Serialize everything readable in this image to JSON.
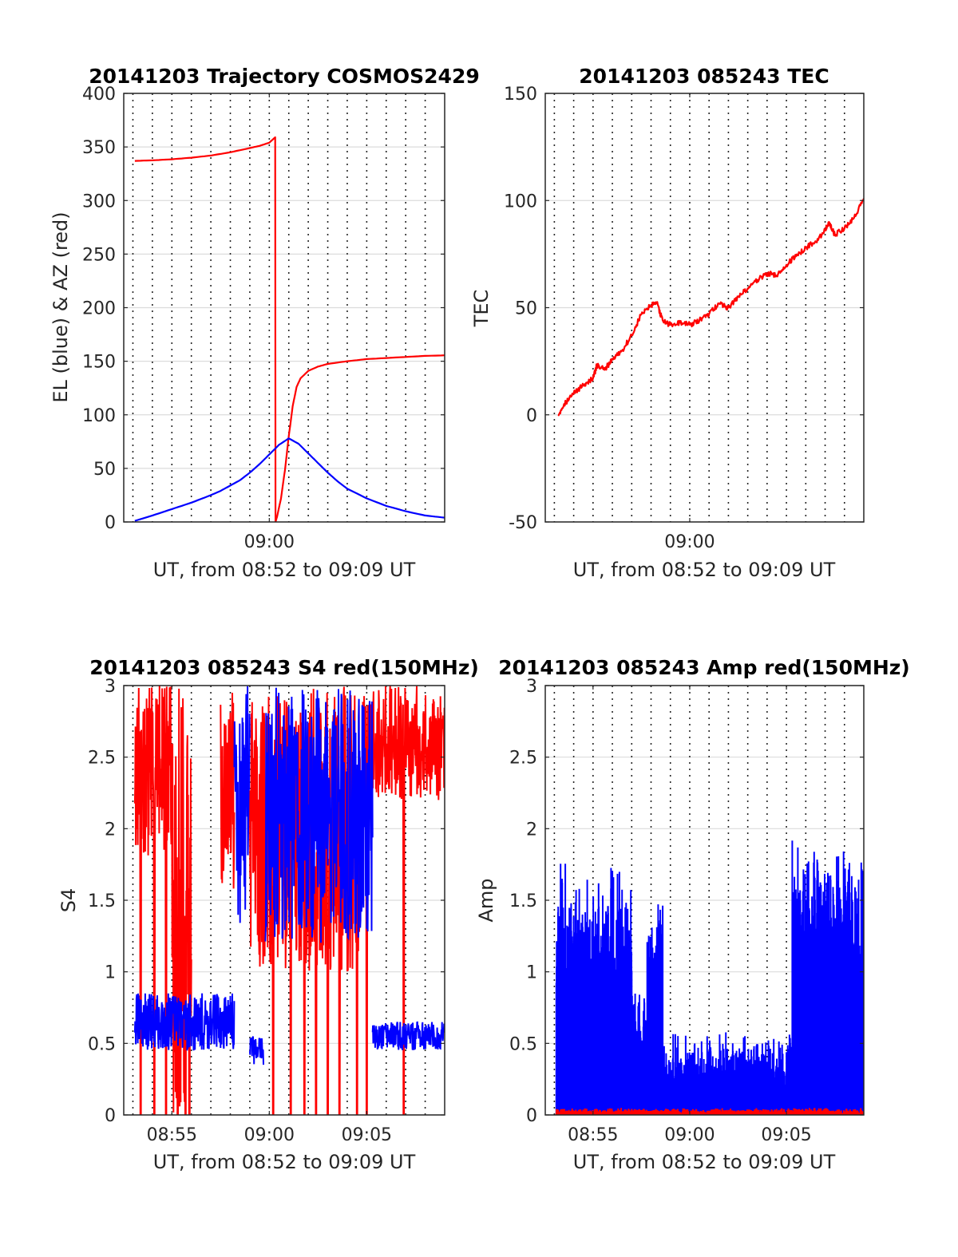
{
  "figure": {
    "panels": [
      {
        "id": "trajectory",
        "title": "20141203 Trajectory COSMOS2429",
        "xlabel": "UT, from 08:52 to 09:09 UT",
        "ylabel": "EL (blue) & AZ (red)"
      },
      {
        "id": "tec",
        "title": "20141203 085243 TEC",
        "xlabel": "UT, from 08:52 to 09:09 UT",
        "ylabel": "TEC"
      },
      {
        "id": "s4",
        "title": "20141203 085243 S4 red(150MHz)",
        "xlabel": "UT, from 08:52 to 09:09 UT",
        "ylabel": "S4"
      },
      {
        "id": "amp",
        "title": "20141203 085243 Amp red(150MHz)",
        "xlabel": "UT, from 08:52 to 09:09 UT",
        "ylabel": "Amp"
      }
    ]
  },
  "chart_data": [
    {
      "type": "line",
      "title": "20141203 Trajectory COSMOS2429",
      "xlabel": "UT, from 08:52 to 09:09 UT",
      "ylabel": "EL (blue) & AZ (red)",
      "x_unit": "minutes after 08:00 UT",
      "xlim": [
        52.53,
        69.0
      ],
      "ylim": [
        0,
        400
      ],
      "xticks": [
        {
          "value": 60,
          "label": "09:00"
        }
      ],
      "yticks": [
        0,
        50,
        100,
        150,
        200,
        250,
        300,
        350,
        400
      ],
      "vertical_grid_minutes": [
        53,
        54,
        55,
        56,
        57,
        58,
        59,
        60,
        61,
        62,
        63,
        64,
        65,
        66,
        67,
        68
      ],
      "horizontal_grid": true,
      "series": [
        {
          "color": "#ff0000",
          "x": [
            53.1,
            54.0,
            55.0,
            56.0,
            57.0,
            58.0,
            59.0,
            59.5,
            60.0,
            60.3,
            60.32,
            60.4,
            60.6,
            60.8,
            61.0,
            61.2,
            61.4,
            61.6,
            62.0,
            62.5,
            63.0,
            64.0,
            65.0,
            66.0,
            67.0,
            68.0,
            69.0
          ],
          "y": [
            337,
            337.5,
            338.5,
            340,
            342,
            345,
            349,
            351,
            354,
            359,
            0,
            5,
            22,
            48,
            80,
            108,
            126,
            134,
            141,
            145,
            147.5,
            150,
            152,
            153,
            154,
            155,
            155.5
          ]
        },
        {
          "color": "#0000ff",
          "x": [
            53.1,
            54.0,
            55.0,
            56.0,
            57.0,
            57.5,
            58.0,
            58.5,
            59.0,
            59.5,
            60.0,
            60.5,
            61.0,
            61.5,
            62.0,
            62.5,
            63.0,
            63.5,
            64.0,
            65.0,
            66.0,
            67.0,
            68.0,
            69.0
          ],
          "y": [
            1,
            6,
            12,
            18,
            25,
            29,
            34,
            39,
            46,
            54,
            63,
            72,
            78,
            73,
            64,
            55,
            46,
            38,
            31,
            22,
            15,
            10,
            6,
            4
          ]
        }
      ]
    },
    {
      "type": "line",
      "title": "20141203 085243 TEC",
      "xlabel": "UT, from 08:52 to 09:09 UT",
      "ylabel": "TEC",
      "x_unit": "minutes after 08:00 UT",
      "xlim": [
        52.53,
        69.0
      ],
      "ylim": [
        -50,
        150
      ],
      "xticks": [
        {
          "value": 60,
          "label": "09:00"
        }
      ],
      "yticks": [
        -50,
        0,
        50,
        100,
        150
      ],
      "vertical_grid_minutes": [
        53,
        54,
        55,
        56,
        57,
        58,
        59,
        60,
        61,
        62,
        63,
        64,
        65,
        66,
        67,
        68
      ],
      "horizontal_grid": true,
      "series": [
        {
          "color": "#ff0000",
          "x": [
            53.2,
            53.5,
            54.0,
            54.5,
            55.0,
            55.2,
            55.6,
            56.0,
            56.5,
            57.0,
            57.5,
            58.0,
            58.3,
            58.6,
            59.0,
            59.5,
            60.0,
            60.5,
            61.0,
            61.5,
            62.0,
            62.5,
            63.0,
            63.5,
            64.0,
            64.5,
            65.0,
            65.5,
            66.0,
            66.5,
            67.0,
            67.2,
            67.5,
            68.0,
            68.5,
            69.0
          ],
          "y": [
            0,
            5,
            10,
            14,
            17,
            23,
            21,
            26,
            30,
            37,
            47,
            51,
            52,
            44,
            42,
            43,
            42,
            44,
            47,
            52,
            50,
            55,
            59,
            63,
            66,
            65,
            70,
            74,
            78,
            81,
            86,
            90,
            84,
            87,
            92,
            101
          ]
        }
      ]
    },
    {
      "type": "line",
      "title": "20141203 085243 S4 red(150MHz)",
      "xlabel": "UT, from 08:52 to 09:09 UT",
      "ylabel": "S4",
      "x_unit": "minutes after 08:00 UT",
      "xlim": [
        52.53,
        69.0
      ],
      "ylim": [
        0,
        3
      ],
      "xticks": [
        {
          "value": 55,
          "label": "08:55"
        },
        {
          "value": 60,
          "label": "09:00"
        },
        {
          "value": 65,
          "label": "09:05"
        }
      ],
      "yticks": [
        0,
        0.5,
        1,
        1.5,
        2,
        2.5,
        3
      ],
      "vertical_grid_minutes": [
        53,
        54,
        55,
        56,
        57,
        58,
        59,
        60,
        61,
        62,
        63,
        64,
        65,
        66,
        67,
        68
      ],
      "horizontal_grid": true,
      "noise_series": [
        {
          "color": "#ff0000",
          "description_ranges": [
            {
              "x": [
                53.1,
                55.0
              ],
              "level": [
                1.8,
                3.0
              ],
              "spikes_to_zero": [
                53.4,
                54.1,
                54.7
              ]
            },
            {
              "x": [
                55.0,
                56.0
              ],
              "level": [
                0.0,
                3.0
              ],
              "spikes_to_zero": [
                55.3,
                55.7,
                55.9
              ]
            },
            {
              "x": [
                57.5,
                58.2
              ],
              "level": [
                1.5,
                3.0
              ],
              "spikes_to_zero": []
            },
            {
              "x": [
                59.0,
                64.8
              ],
              "level": [
                1.0,
                3.0
              ],
              "spikes_to_zero": [
                60.2,
                61.1,
                61.8,
                62.4,
                63.0,
                63.6,
                64.5
              ]
            },
            {
              "x": [
                64.8,
                69.0
              ],
              "level": [
                2.2,
                3.0
              ],
              "spikes_to_zero": [
                65.0,
                66.9
              ]
            }
          ]
        },
        {
          "color": "#0000ff",
          "description_ranges": [
            {
              "x": [
                53.1,
                58.2
              ],
              "level": [
                0.45,
                0.85
              ]
            },
            {
              "x": [
                58.2,
                59.0
              ],
              "level": [
                1.3,
                3.0
              ]
            },
            {
              "x": [
                59.0,
                59.7
              ],
              "level": [
                0.35,
                0.55
              ]
            },
            {
              "x": [
                59.8,
                65.3
              ],
              "level": [
                1.2,
                3.0
              ]
            },
            {
              "x": [
                65.3,
                69.0
              ],
              "level": [
                0.45,
                0.65
              ]
            }
          ]
        }
      ]
    },
    {
      "type": "line",
      "title": "20141203 085243 Amp red(150MHz)",
      "xlabel": "UT, from 08:52 to 09:09 UT",
      "ylabel": "Amp",
      "x_unit": "minutes after 08:00 UT",
      "xlim": [
        52.53,
        69.0
      ],
      "ylim": [
        0,
        3
      ],
      "xticks": [
        {
          "value": 55,
          "label": "08:55"
        },
        {
          "value": 60,
          "label": "09:00"
        },
        {
          "value": 65,
          "label": "09:05"
        }
      ],
      "yticks": [
        0,
        0.5,
        1,
        1.5,
        2,
        2.5,
        3
      ],
      "vertical_grid_minutes": [
        53,
        54,
        55,
        56,
        57,
        58,
        59,
        60,
        61,
        62,
        63,
        64,
        65,
        66,
        67,
        68
      ],
      "horizontal_grid": true,
      "noise_series": [
        {
          "color": "#0000ff",
          "description_ranges": [
            {
              "x": [
                53.1,
                57.0
              ],
              "peak": [
                1.0,
                1.8
              ]
            },
            {
              "x": [
                57.0,
                57.8
              ],
              "peak": [
                0.6,
                0.9
              ]
            },
            {
              "x": [
                57.8,
                58.6
              ],
              "peak": [
                1.2,
                1.55
              ]
            },
            {
              "x": [
                58.6,
                65.3
              ],
              "peak": [
                0.2,
                0.6
              ]
            },
            {
              "x": [
                65.3,
                69.0
              ],
              "peak": [
                1.5,
                1.95
              ]
            }
          ],
          "floor": 0
        },
        {
          "color": "#ff0000",
          "description_ranges": [
            {
              "x": [
                53.1,
                69.0
              ],
              "peak": [
                0.0,
                0.05
              ]
            }
          ]
        }
      ]
    }
  ]
}
